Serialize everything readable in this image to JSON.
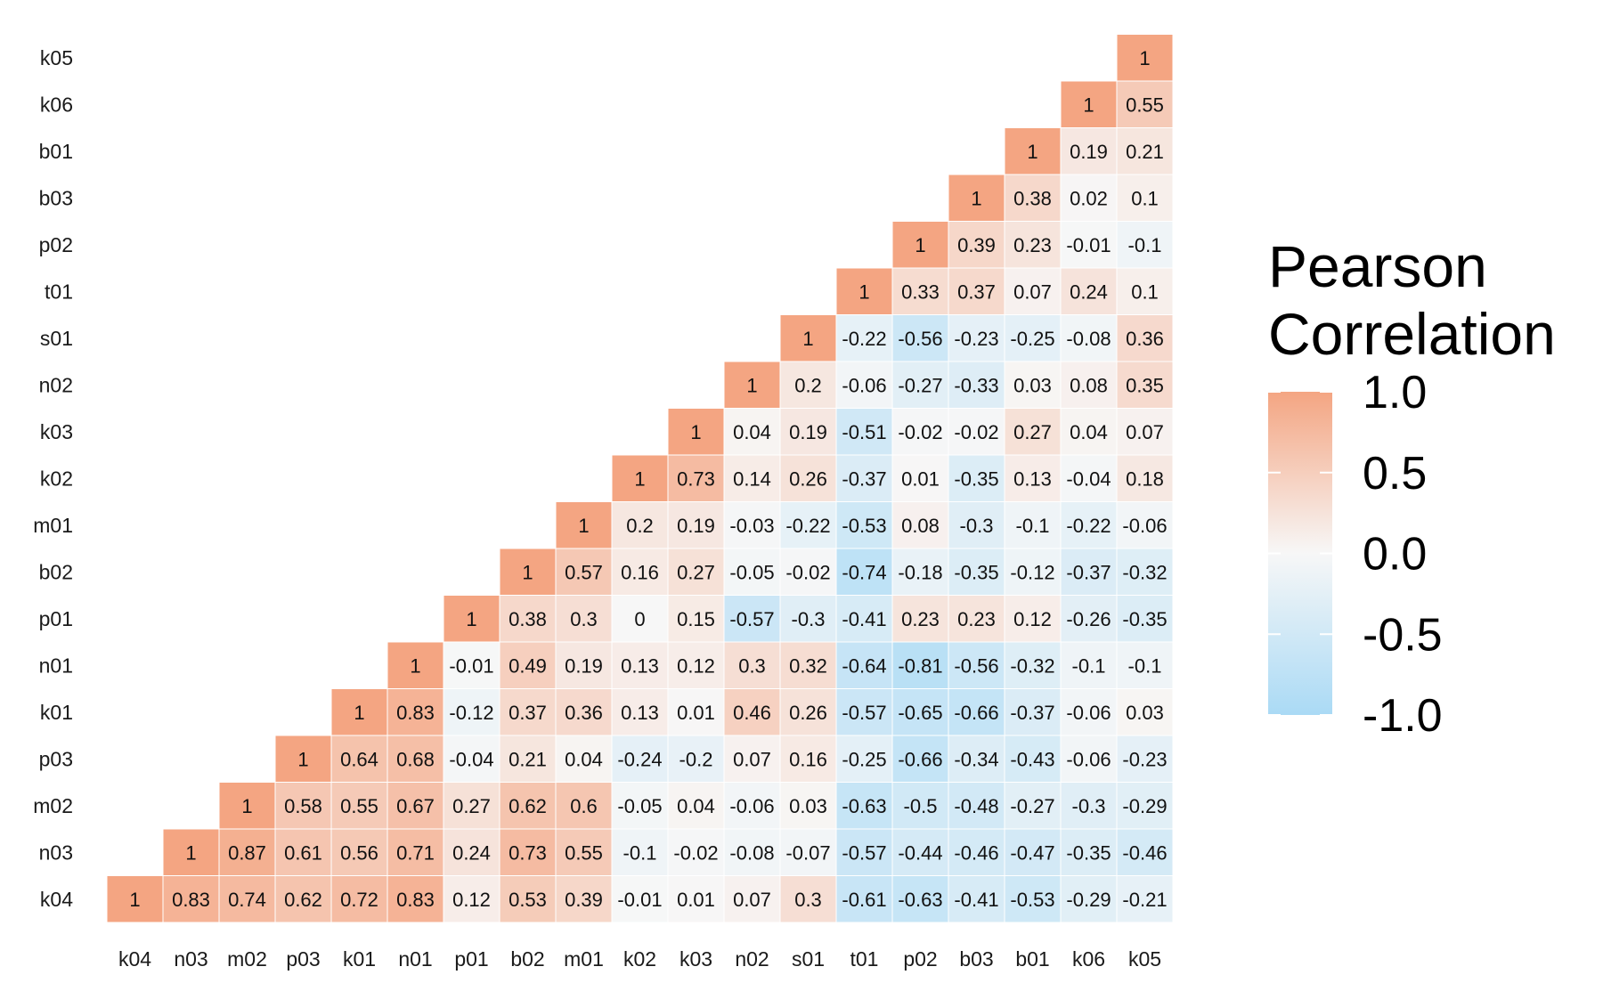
{
  "chart_data": {
    "type": "heatmap",
    "title": "",
    "xlabel": "",
    "ylabel": "",
    "variables": [
      "k04",
      "n03",
      "m02",
      "p03",
      "k01",
      "n01",
      "p01",
      "b02",
      "m01",
      "k02",
      "k03",
      "n02",
      "s01",
      "t01",
      "p02",
      "b03",
      "b01",
      "k06",
      "k05"
    ],
    "layout": "lower-left triangle; x ticks bottom, y ticks left (top-to-bottom k05 ... k04)",
    "columns": [
      {
        "var": "k04",
        "values": [
          1
        ]
      },
      {
        "var": "n03",
        "values": [
          0.83,
          1
        ]
      },
      {
        "var": "m02",
        "values": [
          0.74,
          0.87,
          1
        ]
      },
      {
        "var": "p03",
        "values": [
          0.62,
          0.61,
          0.58,
          1
        ]
      },
      {
        "var": "k01",
        "values": [
          0.72,
          0.56,
          0.55,
          0.64,
          1
        ]
      },
      {
        "var": "n01",
        "values": [
          0.83,
          0.71,
          0.67,
          0.68,
          0.83,
          1
        ]
      },
      {
        "var": "p01",
        "values": [
          0.12,
          0.24,
          0.27,
          -0.04,
          -0.12,
          -0.01,
          1
        ]
      },
      {
        "var": "b02",
        "values": [
          0.53,
          0.73,
          0.62,
          0.21,
          0.37,
          0.49,
          0.38,
          1
        ]
      },
      {
        "var": "m01",
        "values": [
          0.39,
          0.55,
          0.6,
          0.04,
          0.36,
          0.19,
          0.3,
          0.57,
          1
        ]
      },
      {
        "var": "k02",
        "values": [
          -0.01,
          -0.1,
          -0.05,
          -0.24,
          0.13,
          0.13,
          0,
          0.16,
          0.2,
          1
        ]
      },
      {
        "var": "k03",
        "values": [
          0.01,
          -0.02,
          0.04,
          -0.2,
          0.01,
          0.12,
          0.15,
          0.27,
          0.19,
          0.73,
          1
        ]
      },
      {
        "var": "n02",
        "values": [
          0.07,
          -0.08,
          -0.06,
          0.07,
          0.46,
          0.3,
          -0.57,
          -0.05,
          -0.03,
          0.14,
          0.04,
          1
        ]
      },
      {
        "var": "s01",
        "values": [
          0.3,
          -0.07,
          0.03,
          0.16,
          0.26,
          0.32,
          -0.3,
          -0.02,
          -0.22,
          0.26,
          0.19,
          0.2,
          1
        ]
      },
      {
        "var": "t01",
        "values": [
          -0.61,
          -0.57,
          -0.63,
          -0.25,
          -0.57,
          -0.64,
          -0.41,
          -0.74,
          -0.53,
          -0.37,
          -0.51,
          -0.06,
          -0.22,
          1
        ]
      },
      {
        "var": "p02",
        "values": [
          -0.63,
          -0.44,
          -0.5,
          -0.66,
          -0.65,
          -0.81,
          0.23,
          -0.18,
          0.08,
          0.01,
          -0.02,
          -0.27,
          -0.56,
          0.33,
          1
        ]
      },
      {
        "var": "b03",
        "values": [
          -0.41,
          -0.46,
          -0.48,
          -0.34,
          -0.66,
          -0.56,
          0.23,
          -0.35,
          -0.3,
          -0.35,
          -0.02,
          -0.33,
          -0.23,
          0.37,
          0.39,
          1
        ]
      },
      {
        "var": "b01",
        "values": [
          -0.53,
          -0.47,
          -0.27,
          -0.43,
          -0.37,
          -0.32,
          0.12,
          -0.12,
          -0.1,
          0.13,
          0.27,
          0.03,
          -0.25,
          0.07,
          0.23,
          0.38,
          1
        ]
      },
      {
        "var": "k06",
        "values": [
          -0.29,
          -0.35,
          -0.3,
          -0.06,
          -0.06,
          -0.1,
          -0.26,
          -0.37,
          -0.22,
          -0.04,
          0.04,
          0.08,
          -0.08,
          0.24,
          -0.01,
          0.02,
          0.19,
          1
        ]
      },
      {
        "var": "k05",
        "values": [
          -0.21,
          -0.46,
          -0.29,
          -0.23,
          0.03,
          -0.1,
          -0.35,
          -0.32,
          -0.06,
          0.18,
          0.07,
          0.35,
          0.36,
          0.1,
          -0.1,
          0.1,
          0.21,
          0.55,
          1
        ]
      }
    ],
    "legend": {
      "title_lines": [
        "Pearson",
        "Correlation"
      ],
      "ticks": [
        "1.0",
        "0.5",
        "0.0",
        "-0.5",
        "-1.0"
      ],
      "range": [
        -1,
        1
      ],
      "placement": "right"
    },
    "colors": {
      "high": "#F4A582",
      "mid": "#F7F7F7",
      "low": "#AADAF5",
      "cell_border": "#FFFFFF"
    },
    "grid": false
  }
}
